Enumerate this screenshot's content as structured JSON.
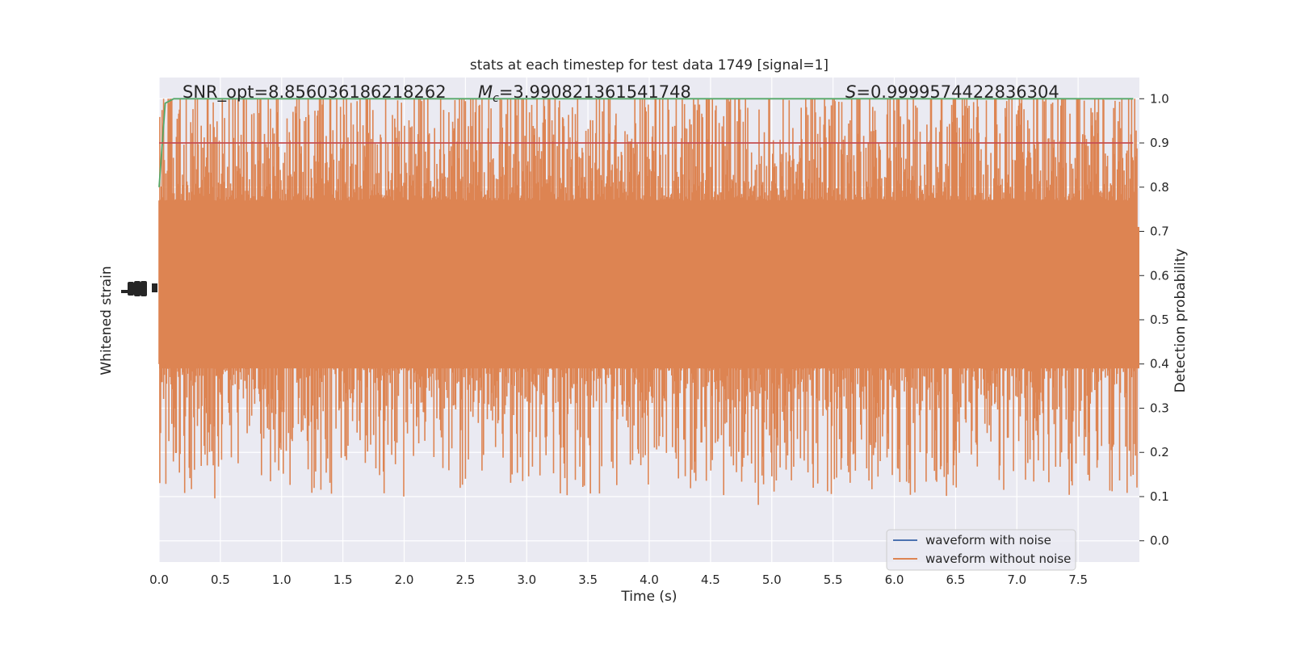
{
  "chart_data": {
    "type": "line",
    "title": "stats at each timestep for test data 1749 [signal=1]",
    "xlabel": "Time (s)",
    "ylabel_left": "Whitened strain",
    "ylabel_right": "Detection probability",
    "xlim": [
      0.0,
      8.0
    ],
    "ylim_right": [
      -0.048,
      1.048
    ],
    "x_ticks": [
      "0.0",
      "0.5",
      "1.0",
      "1.5",
      "2.0",
      "2.5",
      "3.0",
      "3.5",
      "4.0",
      "4.5",
      "5.0",
      "5.5",
      "6.0",
      "6.5",
      "7.0",
      "7.5"
    ],
    "y_right_ticks": [
      "0.0",
      "0.1",
      "0.2",
      "0.3",
      "0.4",
      "0.5",
      "0.6",
      "0.7",
      "0.8",
      "0.9",
      "1.0"
    ],
    "annotations": {
      "snr": "SNR_opt=8.856036186218262",
      "mc_symbol": "M",
      "mc_sub": "c",
      "mc_value": "=3.990821361541748",
      "s_symbol": "S",
      "s_value": "=0.9999574422836304"
    },
    "legend": {
      "placement": "lower-right",
      "entries": [
        "waveform with noise",
        "waveform without noise"
      ]
    },
    "series": [
      {
        "name": "waveform with noise",
        "color": "#4c72b0"
      },
      {
        "name": "waveform without noise",
        "color": "#dd8452",
        "band_center": 0.55,
        "band_core_halfwidth": 0.16
      },
      {
        "color": "#55a868",
        "x": [
          0.0,
          0.05,
          0.12,
          0.2,
          1.0,
          2.0,
          3.0,
          4.0,
          5.0,
          6.0,
          7.0,
          7.95
        ],
        "values": [
          0.8,
          0.99,
          1.0,
          1.0,
          1.0,
          1.0,
          1.0,
          1.0,
          1.0,
          1.0,
          1.0,
          1.0
        ]
      },
      {
        "color": "#c44e52",
        "x": [
          0.0,
          7.95
        ],
        "values": [
          0.9,
          0.9
        ]
      }
    ],
    "grid": true
  }
}
